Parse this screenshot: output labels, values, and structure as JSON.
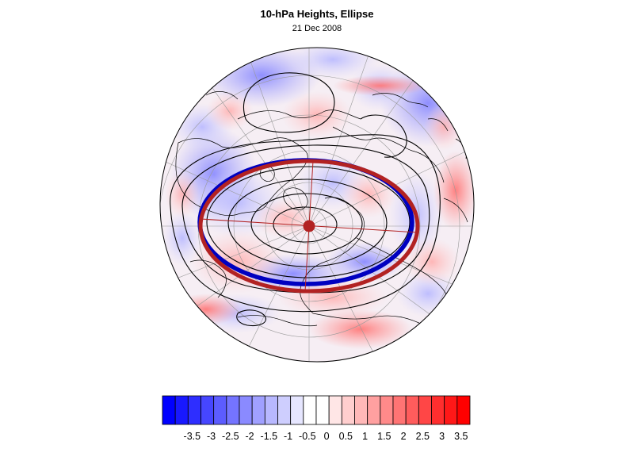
{
  "map": {
    "title": "10-hPa Heights, Ellipse",
    "date": "21 Dec 2008",
    "projection": "polar-stereographic",
    "pole_marker_color": "#b22222",
    "ellipse_color": "#b22222",
    "contour_color": "#000000",
    "blue_ring_color": "#0000c0"
  },
  "colorbar": {
    "labels": [
      "-3.5",
      "-3",
      "-2.5",
      "-2",
      "-1.5",
      "-1",
      "-0.5",
      "0",
      "0.5",
      "1",
      "1.5",
      "2",
      "2.5",
      "3",
      "3.5"
    ],
    "colors": [
      "#0000ff",
      "#1818ff",
      "#2e2eff",
      "#4646ff",
      "#5c5cff",
      "#7474ff",
      "#8a8aff",
      "#a0a0ff",
      "#b8b8ff",
      "#cecefe",
      "#e6e6ff",
      "#ffffff",
      "#ffffff",
      "#ffe6e6",
      "#ffcece",
      "#ffb8b8",
      "#ffa0a0",
      "#ff8a8a",
      "#ff7474",
      "#ff5c5c",
      "#ff4646",
      "#ff2e2e",
      "#ff1818",
      "#ff0000"
    ]
  }
}
